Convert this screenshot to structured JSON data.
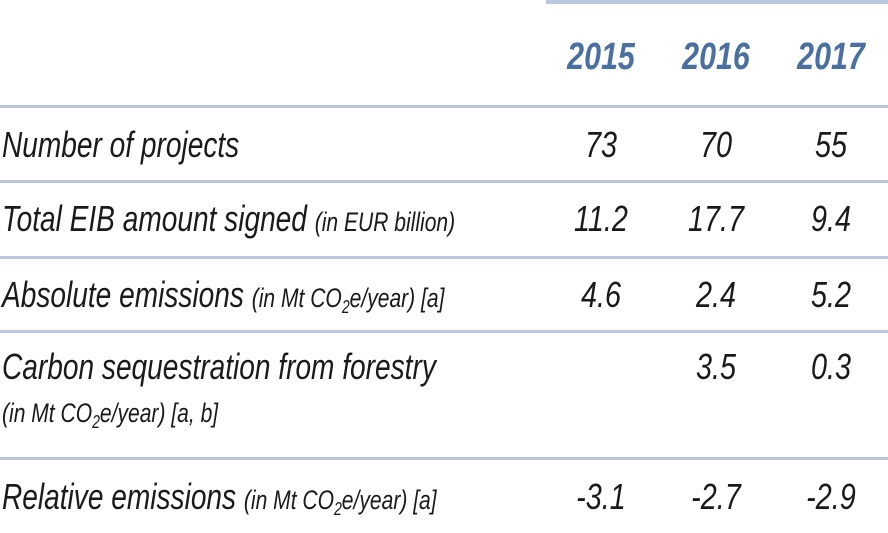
{
  "header": {
    "years": [
      "2015",
      "2016",
      "2017"
    ]
  },
  "rows": [
    {
      "label": "Number of projects",
      "note": "",
      "values": [
        "73",
        "70",
        "55"
      ]
    },
    {
      "label": "Total EIB amount signed ",
      "note": "(in EUR billion)",
      "values": [
        "11.2",
        "17.7",
        "9.4"
      ]
    },
    {
      "label": "Absolute emissions ",
      "note_pre": "(in Mt CO",
      "note_sub": "2",
      "note_post": "e/year) [a]",
      "values": [
        "4.6",
        "2.4",
        "5.2"
      ]
    },
    {
      "label": "Carbon sequestration from forestry",
      "note_pre": "(in Mt CO",
      "note_sub": "2",
      "note_post": "e/year) [a, b]",
      "values": [
        "",
        "3.5",
        "0.3"
      ]
    },
    {
      "label": "Relative emissions ",
      "note_pre": "(in Mt CO",
      "note_sub": "2",
      "note_post": "e/year) [a]",
      "values": [
        "-3.1",
        "-2.7",
        "-2.9"
      ]
    }
  ]
}
